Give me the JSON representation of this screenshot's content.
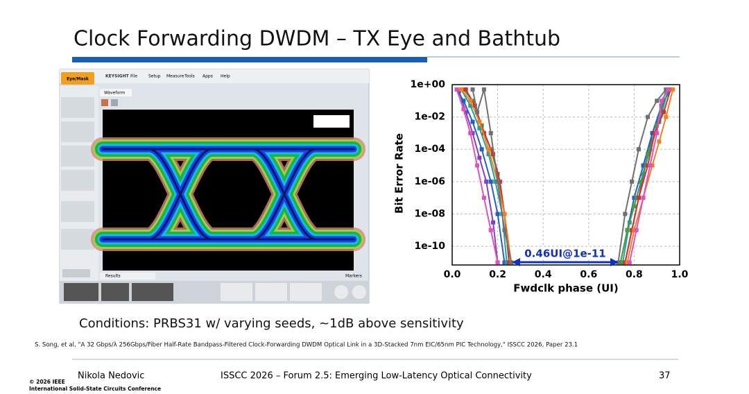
{
  "title": "Clock Forwarding DWDM – TX Eye and Bathtub",
  "scope": {
    "brand": "KEYSIGHT",
    "menu": [
      "File",
      "Setup",
      "Measure",
      "Tools",
      "Apps",
      "Help"
    ],
    "side_tab": "Eye/Mask",
    "tab": "Waveform",
    "results": "Results",
    "markers": "Markers"
  },
  "chart_data": {
    "type": "line",
    "log_y": true,
    "grid": true,
    "ylabel": "Bit Error Rate",
    "xlabel": "Fwdclk phase (UI)",
    "annotation": "0.46UI@1e-11",
    "xlim": [
      0,
      1
    ],
    "ylim": [
      7e-12,
      1
    ],
    "xticks": [
      {
        "value": 0,
        "label": "0.0"
      },
      0.2,
      0.4,
      0.6,
      0.8,
      {
        "value": 1,
        "label": "1.0"
      }
    ],
    "yticks": [
      {
        "value": 1,
        "label": "1e+00"
      },
      {
        "value": 0.01,
        "label": "1e-02"
      },
      {
        "value": 0.0001,
        "label": "1e-04"
      },
      {
        "value": 1e-06,
        "label": "1e-06"
      },
      {
        "value": 1e-08,
        "label": "1e-08"
      },
      {
        "value": 1e-10,
        "label": "1e-10"
      }
    ],
    "series": [
      {
        "color": "#8040c0",
        "x": [
          0.03,
          0.06,
          0.09,
          0.12,
          0.15,
          0.18,
          0.2,
          null,
          0.76,
          0.79,
          0.82,
          0.85,
          0.88,
          0.92,
          0.95
        ],
        "values": [
          0.4,
          0.02,
          0.001,
          3e-05,
          1e-06,
          3e-09,
          1e-11,
          null,
          1e-11,
          1e-09,
          1e-07,
          1e-05,
          0.001,
          0.03,
          0.4
        ]
      },
      {
        "color": "#2060c0",
        "x": [
          0.02,
          0.05,
          0.09,
          0.13,
          0.17,
          0.2,
          0.23,
          null,
          0.74,
          0.77,
          0.8,
          0.84,
          0.88,
          0.92,
          0.96
        ],
        "values": [
          0.5,
          0.1,
          0.005,
          0.0001,
          1e-06,
          1e-08,
          1e-11,
          null,
          1e-11,
          1e-09,
          1e-07,
          1e-05,
          0.001,
          0.05,
          0.5
        ]
      },
      {
        "color": "#20a0a0",
        "x": [
          0.04,
          0.08,
          0.12,
          0.16,
          0.19,
          0.22,
          0.24,
          null,
          0.75,
          0.78,
          0.81,
          0.84,
          0.87,
          0.91,
          0.95
        ],
        "values": [
          0.5,
          0.05,
          0.002,
          5e-05,
          1e-06,
          1e-08,
          1e-11,
          null,
          1e-11,
          3e-09,
          1e-07,
          3e-06,
          0.0001,
          0.005,
          0.5
        ]
      },
      {
        "color": "#40a040",
        "x": [
          0.05,
          0.09,
          0.13,
          0.17,
          0.2,
          0.23,
          0.25,
          null,
          0.74,
          0.77,
          0.8,
          0.83,
          0.86,
          0.9,
          0.94
        ],
        "values": [
          0.5,
          0.1,
          0.003,
          0.0001,
          3e-06,
          1e-08,
          1e-11,
          null,
          1e-11,
          1e-09,
          3e-08,
          1e-06,
          5e-05,
          0.003,
          0.5
        ]
      },
      {
        "color": "#d03030",
        "x": [
          0.06,
          0.1,
          0.14,
          0.18,
          0.21,
          0.23,
          0.25,
          null,
          0.76,
          0.79,
          0.82,
          0.86,
          0.89,
          0.93,
          0.96
        ],
        "values": [
          0.5,
          0.05,
          0.001,
          5e-05,
          1e-06,
          1e-08,
          1e-11,
          null,
          1e-11,
          1e-09,
          1e-07,
          1e-05,
          0.001,
          0.02,
          0.5
        ]
      },
      {
        "color": "#f08020",
        "x": [
          0.04,
          0.08,
          0.12,
          0.16,
          0.2,
          0.23,
          0.26,
          null,
          0.77,
          0.8,
          0.84,
          0.88,
          0.91,
          0.94,
          0.97
        ],
        "values": [
          0.5,
          0.1,
          0.005,
          0.0001,
          1e-06,
          1e-08,
          1e-11,
          null,
          1e-11,
          1e-09,
          1e-07,
          1e-05,
          0.0003,
          0.01,
          0.5
        ]
      },
      {
        "color": "#707070",
        "x": [
          0.09,
          0.11,
          0.14,
          0.17,
          0.2,
          0.23,
          0.26,
          null,
          0.73,
          0.76,
          0.79,
          0.82,
          0.86,
          0.9,
          0.94
        ],
        "values": [
          0.5,
          0.02,
          0.5,
          0.001,
          1e-06,
          1e-09,
          1e-11,
          null,
          1e-11,
          1e-08,
          1e-06,
          0.0001,
          0.01,
          0.1,
          0.5
        ]
      },
      {
        "color": "#e050c0",
        "x": [
          0.02,
          0.05,
          0.08,
          0.11,
          0.14,
          0.17,
          0.2,
          null,
          0.78,
          0.81,
          0.84,
          0.87,
          0.9,
          0.92,
          0.95
        ],
        "values": [
          0.5,
          0.03,
          0.001,
          1e-05,
          1e-07,
          1e-09,
          1e-11,
          null,
          1e-11,
          1e-09,
          1e-07,
          1e-05,
          0.001,
          0.1,
          0.5
        ]
      }
    ]
  },
  "conditions": "Conditions: PRBS31 w/ varying seeds, ~1dB above sensitivity",
  "citation": "S. Song, et al, \"A 32 Gbps/λ 256Gbps/Fiber Half-Rate Bandpass-Filtered Clock-Forwarding DWDM Optical Link in a 3D-Stacked 7nm EIC/65nm PIC Technology,\" ISSCC 2026, Paper 23.1",
  "footer": {
    "presenter": "Nikola Nedovic",
    "event": "ISSCC 2026 – Forum 2.5: Emerging Low-Latency Optical Connectivity",
    "page": "37",
    "copyright": "© 2026 IEEE",
    "society": "International Solid-State Circuits Conference"
  }
}
